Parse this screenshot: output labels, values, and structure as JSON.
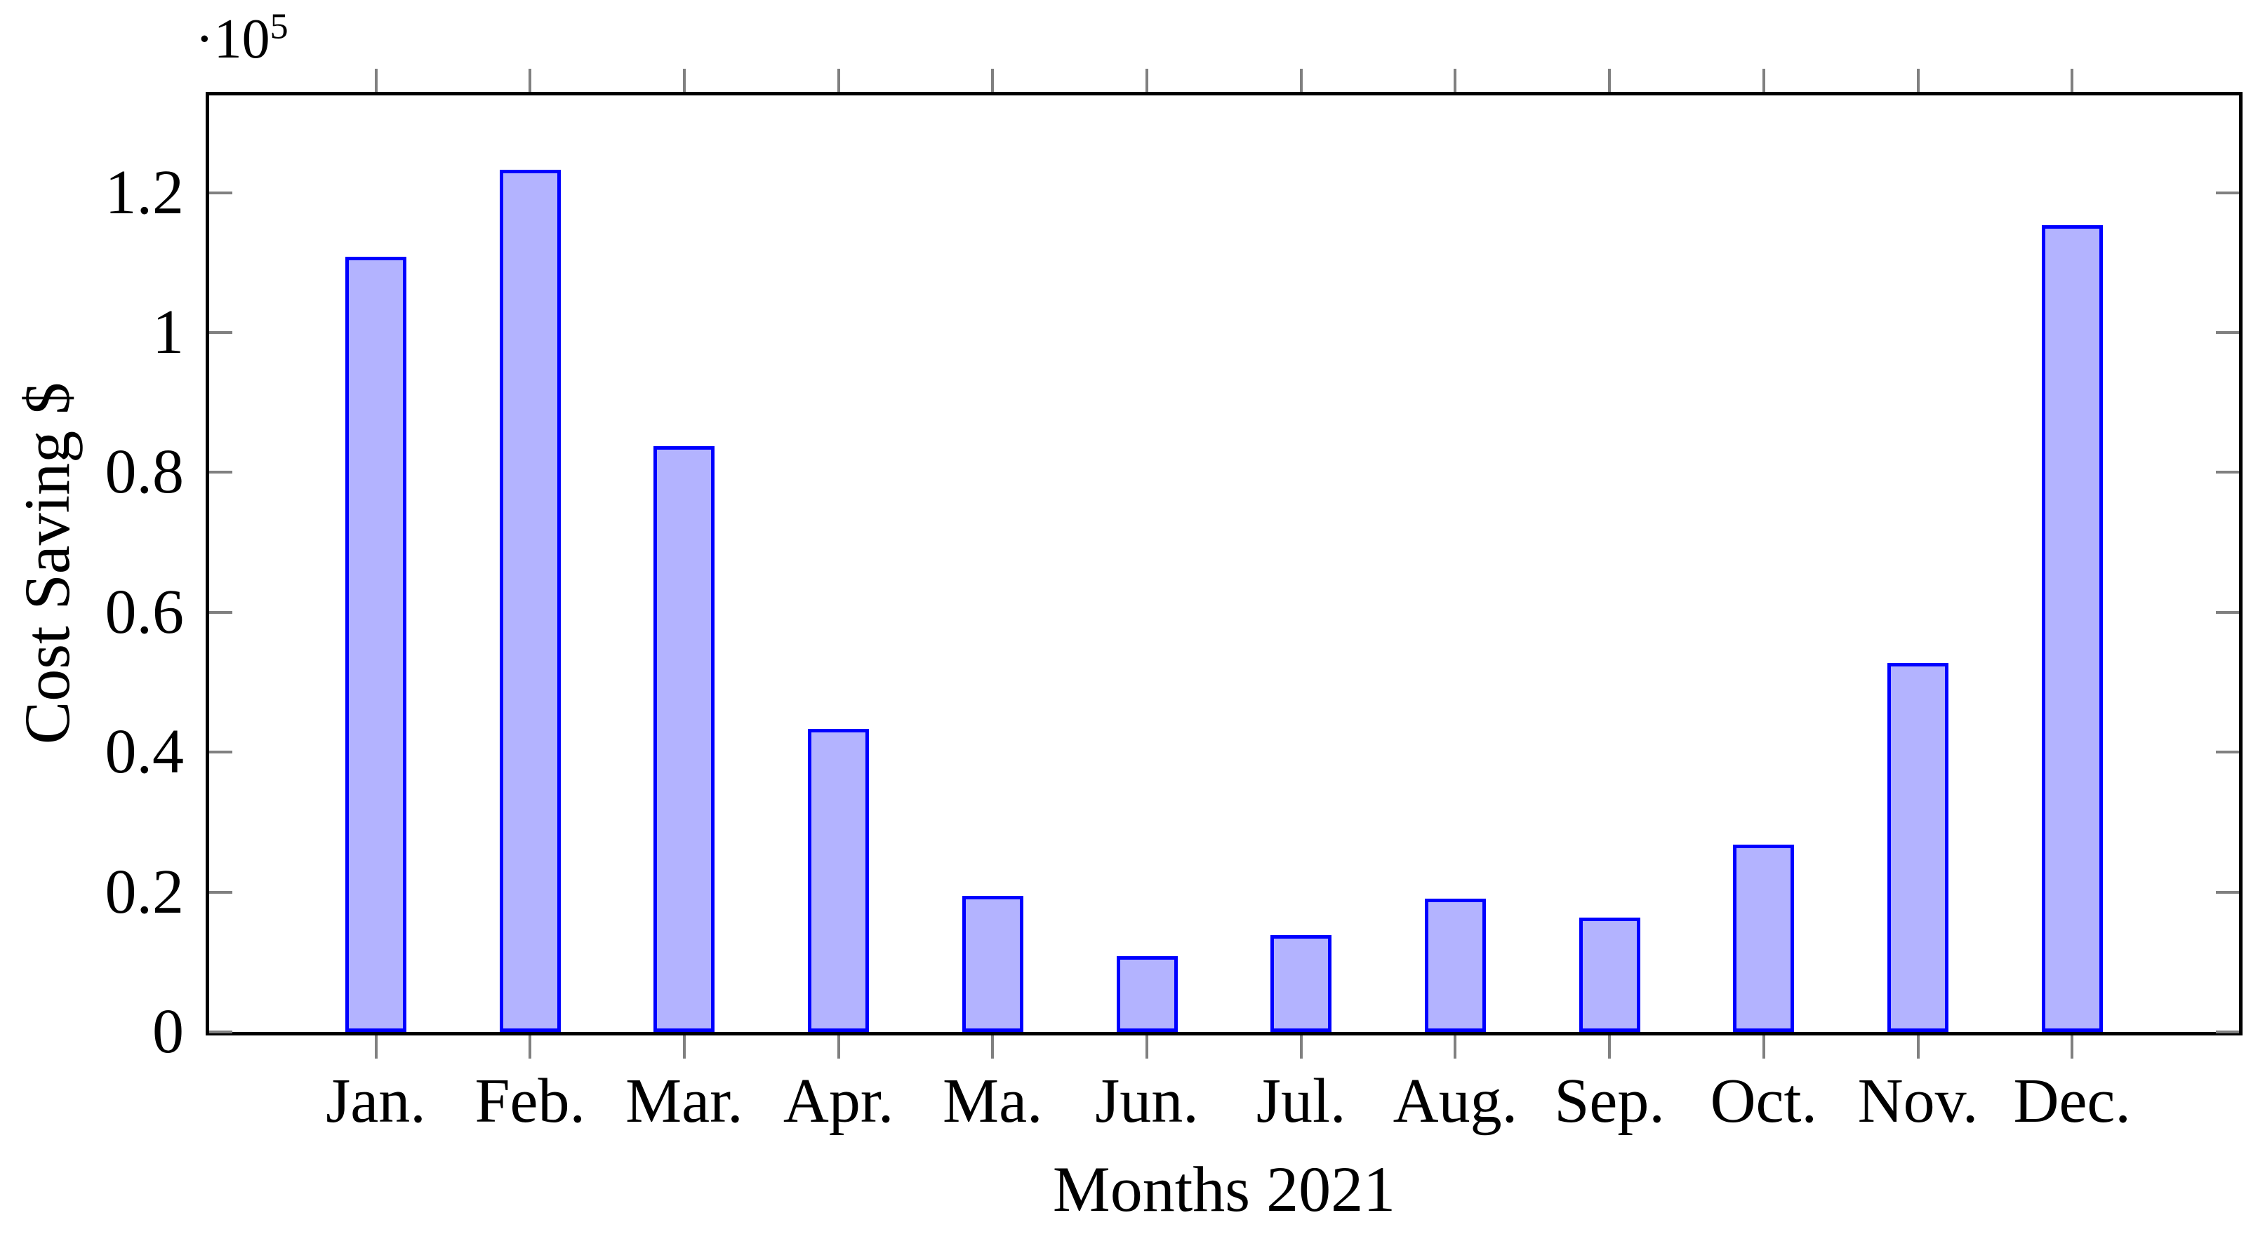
{
  "chart_data": {
    "type": "bar",
    "title": "",
    "categories": [
      "Jan.",
      "Feb.",
      "Mar.",
      "Apr.",
      "Ma.",
      "Jun.",
      "Jul.",
      "Aug.",
      "Sep.",
      "Oct.",
      "Nov.",
      "Dec."
    ],
    "values": [
      110500,
      123000,
      83500,
      43000,
      19200,
      10500,
      13500,
      18800,
      16000,
      26500,
      52500,
      115000
    ],
    "values_in_axis_units_1e5": [
      1.105,
      1.23,
      0.835,
      0.43,
      0.192,
      0.105,
      0.135,
      0.188,
      0.16,
      0.265,
      0.525,
      1.15
    ],
    "xlabel": "Months 2021",
    "ylabel": "Cost Saving $",
    "y_exponent_base": "·10",
    "y_exponent_power": "5",
    "ytick_labels": [
      "0",
      "0.2",
      "0.4",
      "0.6",
      "0.8",
      "1",
      "1.2"
    ],
    "ytick_values": [
      0,
      0.2,
      0.4,
      0.6,
      0.8,
      1,
      1.2
    ],
    "ylim": [
      0,
      1.34
    ],
    "xlim_slots": 12,
    "grid": false,
    "legend": null,
    "colors": {
      "bar_fill": "#b3b3ff",
      "bar_border": "#0000ff",
      "axis": "#000000",
      "tick": "#808080",
      "background": "#ffffff",
      "text": "#000000"
    }
  }
}
